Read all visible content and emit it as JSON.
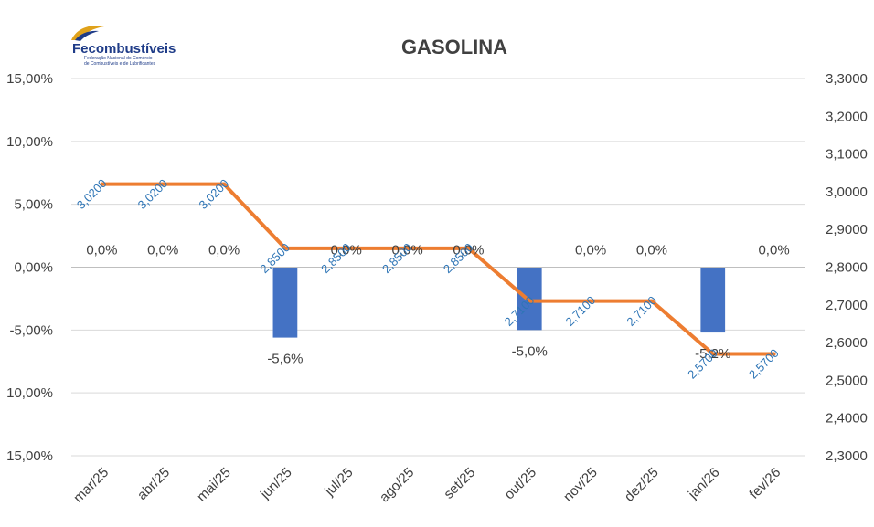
{
  "logo": {
    "name": "Fecombustíveis",
    "subtitle_line1": "Federação Nacional do Comércio",
    "subtitle_line2": "de Combustíveis e de Lubrificantes"
  },
  "chart_data": {
    "type": "bar+line",
    "title": "GASOLINA",
    "categories": [
      "mar/25",
      "abr/25",
      "mai/25",
      "jun/25",
      "jul/25",
      "ago/25",
      "set/25",
      "out/25",
      "nov/25",
      "dez/25",
      "jan/26",
      "fev/26"
    ],
    "y_left": {
      "ticks": [
        "15,00%",
        "10,00%",
        "5,00%",
        "0,00%",
        "-5,00%",
        "10,00%",
        "15,00%"
      ],
      "ylim": [
        -15,
        15
      ]
    },
    "y_right": {
      "ticks": [
        "3,3000",
        "3,2000",
        "3,1000",
        "3,0000",
        "2,9000",
        "2,8000",
        "2,7000",
        "2,6000",
        "2,5000",
        "2,4000",
        "2,3000"
      ],
      "ylim": [
        2.3,
        3.3
      ]
    },
    "grid": true,
    "series": [
      {
        "kind": "bar",
        "axis": "left",
        "color": "#4472c4",
        "values": [
          0,
          0,
          0,
          -5.6,
          0,
          0,
          0,
          -5.0,
          0,
          0,
          -5.2,
          0
        ],
        "labels": [
          "0,0%",
          "0,0%",
          "0,0%",
          "-5,6%",
          "0,0%",
          "0,0%",
          "0,0%",
          "-5,0%",
          "0,0%",
          "0,0%",
          "-5,2%",
          "0,0%"
        ]
      },
      {
        "kind": "line",
        "axis": "right",
        "color": "#ed7d31",
        "values": [
          3.02,
          3.02,
          3.02,
          2.85,
          2.85,
          2.85,
          2.85,
          2.71,
          2.71,
          2.71,
          2.57,
          2.57
        ],
        "labels": [
          "3,0200",
          "3,0200",
          "3,0200",
          "2,8500",
          "2,8500",
          "2,8500",
          "2,8500",
          "2,7100",
          "2,7100",
          "2,7100",
          "2,5700",
          "2,5700"
        ]
      }
    ]
  }
}
